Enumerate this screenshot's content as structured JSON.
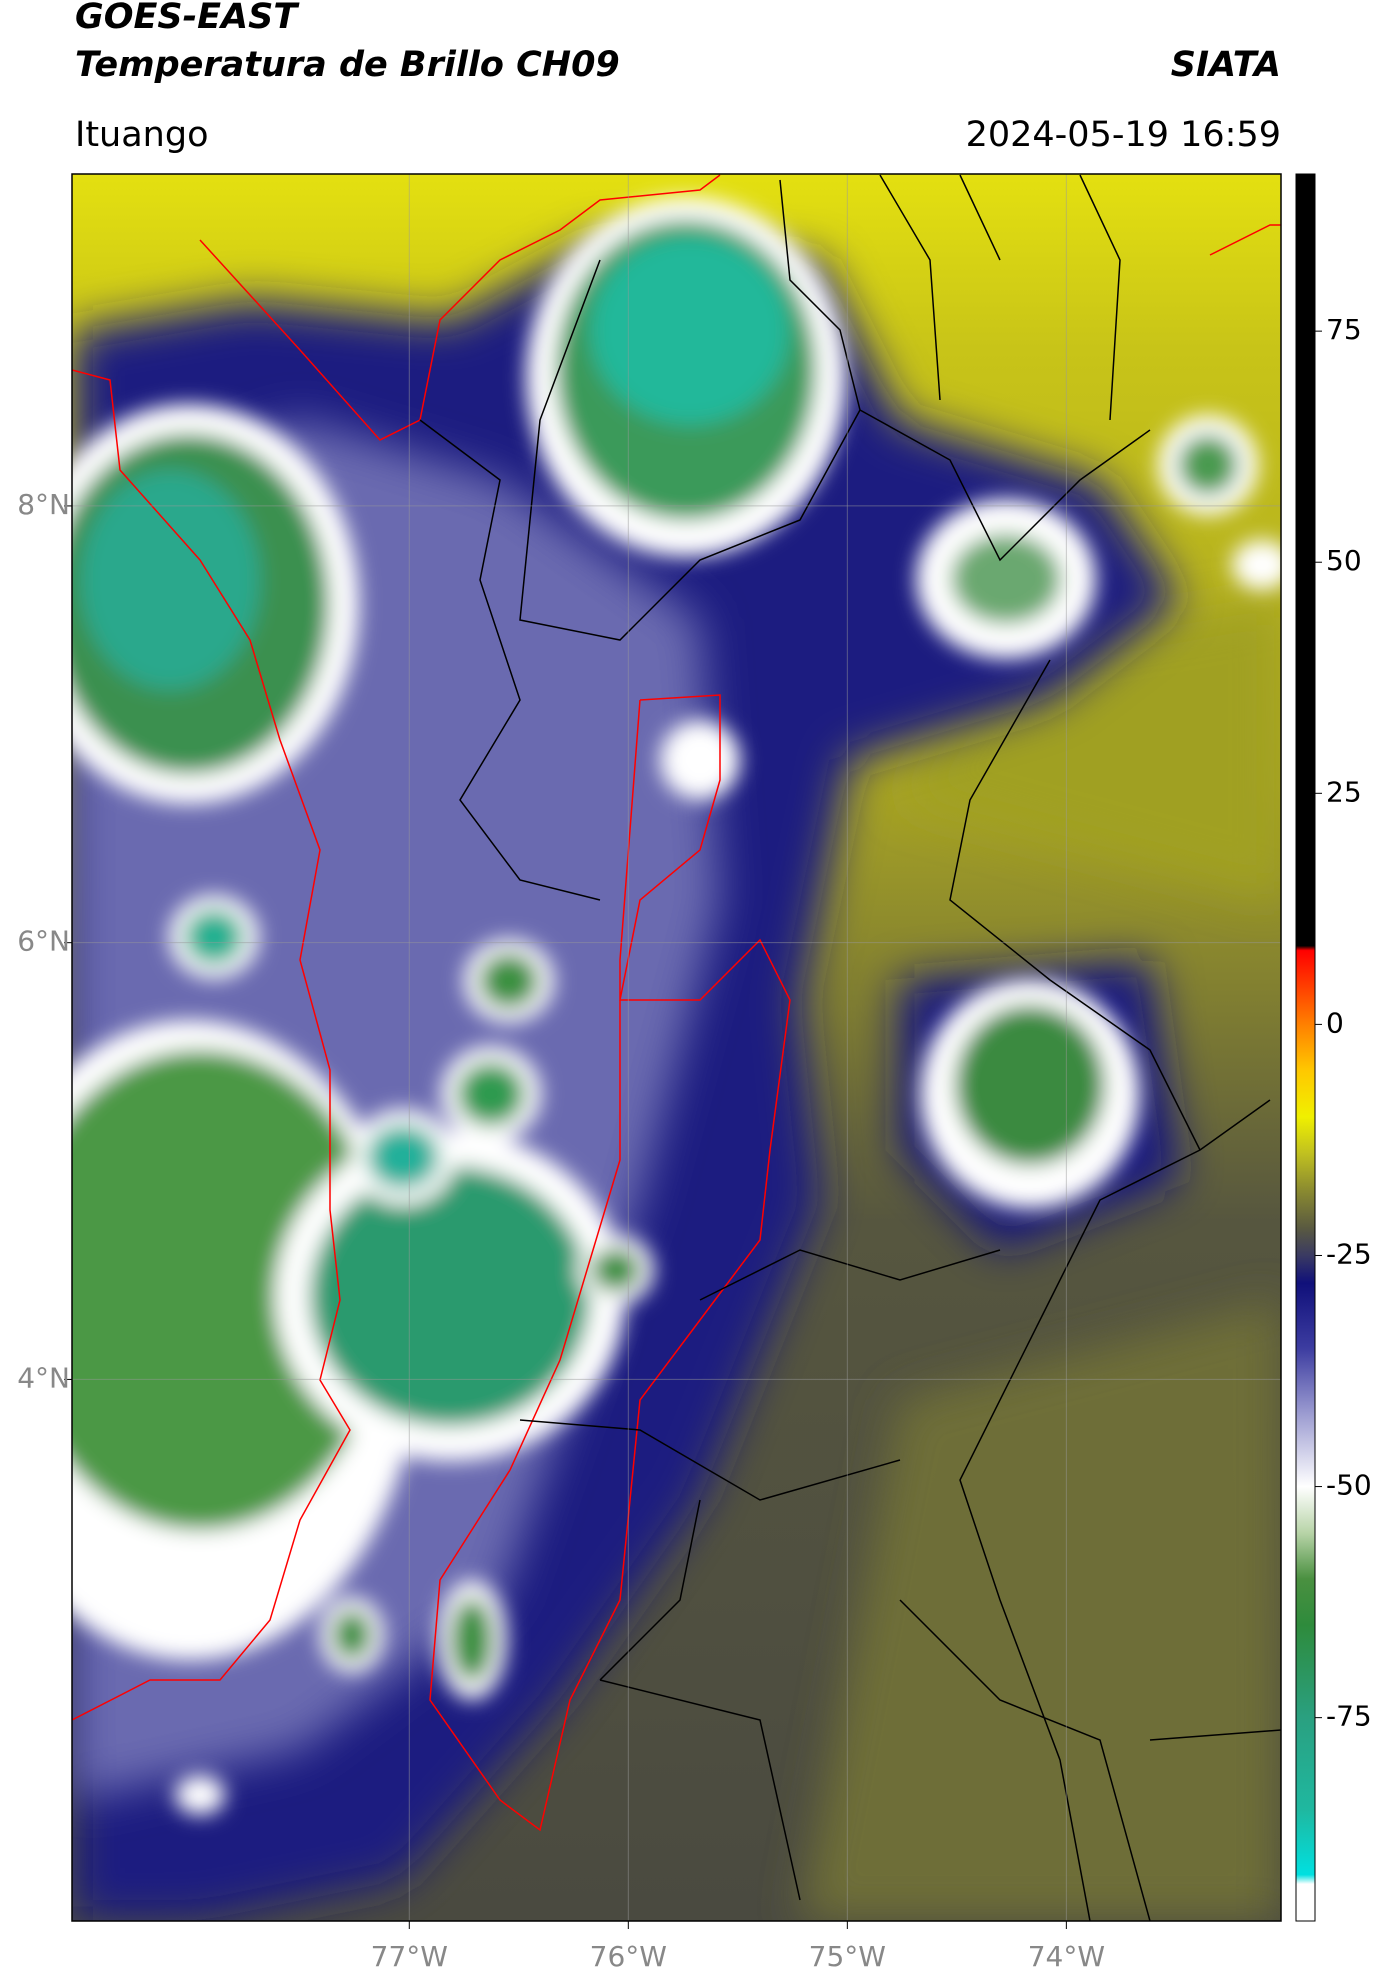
{
  "header": {
    "title": "GOES-EAST",
    "subtitle": "Temperatura de Brillo CH09",
    "agency": "SIATA",
    "location": "Ituango",
    "timestamp": "2024-05-19 16:59"
  },
  "map": {
    "lon_lim": [
      -78.54,
      -73.02
    ],
    "lat_lim": [
      1.52,
      9.52
    ],
    "lon_ticks": [
      {
        "value": -77,
        "label": "77°W"
      },
      {
        "value": -76,
        "label": "76°W"
      },
      {
        "value": -75,
        "label": "75°W"
      },
      {
        "value": -74,
        "label": "74°W"
      }
    ],
    "lat_ticks": [
      {
        "value": 8,
        "label": "8°N"
      },
      {
        "value": 6,
        "label": "6°N"
      },
      {
        "value": 4,
        "label": "4°N"
      }
    ]
  },
  "colorbar": {
    "lim": [
      -97,
      92
    ],
    "ticks": [
      75,
      50,
      25,
      0,
      -25,
      -50,
      -75
    ],
    "stops": [
      {
        "value": -97,
        "color": "#ffffff"
      },
      {
        "value": -93,
        "color": "#ffffff"
      },
      {
        "value": -92,
        "color": "#00e0e0"
      },
      {
        "value": -85,
        "color": "#1fb8a0"
      },
      {
        "value": -75,
        "color": "#2aa080"
      },
      {
        "value": -65,
        "color": "#2e8b3c"
      },
      {
        "value": -60,
        "color": "#4a9040"
      },
      {
        "value": -55,
        "color": "#b8d4a8"
      },
      {
        "value": -50,
        "color": "#ffffff"
      },
      {
        "value": -42,
        "color": "#9a9ad0"
      },
      {
        "value": -35,
        "color": "#3c3ca0"
      },
      {
        "value": -28,
        "color": "#10107a"
      },
      {
        "value": -25,
        "color": "#3a3a62"
      },
      {
        "value": -22,
        "color": "#5a5a40"
      },
      {
        "value": -18,
        "color": "#8a8a30"
      },
      {
        "value": -14,
        "color": "#c0c020"
      },
      {
        "value": -10,
        "color": "#f0f000"
      },
      {
        "value": -5,
        "color": "#ffc800"
      },
      {
        "value": 0,
        "color": "#ff8000"
      },
      {
        "value": 6,
        "color": "#ff2000"
      },
      {
        "value": 8,
        "color": "#ff0000"
      },
      {
        "value": 8.5,
        "color": "#000000"
      },
      {
        "value": 92,
        "color": "#000000"
      }
    ]
  }
}
